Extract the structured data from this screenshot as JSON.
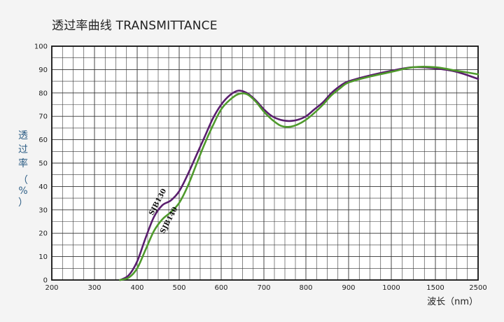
{
  "chart_data": {
    "type": "line",
    "title": "透过率曲线 TRANSMITTANCE",
    "xlabel": "波长（nm）",
    "ylabel_chars": [
      "透",
      "过",
      "率",
      "（",
      "%",
      "）"
    ],
    "x_ticks": [
      "200",
      "300",
      "400",
      "500",
      "600",
      "700",
      "800",
      "900",
      "1000",
      "1500",
      "2500"
    ],
    "y_ticks": [
      "0",
      "10",
      "20",
      "30",
      "40",
      "50",
      "60",
      "70",
      "80",
      "90",
      "100"
    ],
    "ylim": [
      0,
      100
    ],
    "grid": true,
    "series": [
      {
        "name": "SJB130",
        "color": "#5a1e6e",
        "x": [
          360,
          380,
          400,
          420,
          440,
          460,
          480,
          500,
          520,
          540,
          560,
          580,
          600,
          620,
          640,
          660,
          680,
          700,
          720,
          740,
          760,
          780,
          800,
          820,
          840,
          860,
          880,
          900,
          950,
          1000,
          1250,
          1500,
          2000,
          2500
        ],
        "y": [
          0,
          2,
          8,
          18,
          27,
          32,
          34,
          38,
          45,
          53,
          61,
          69,
          75,
          79,
          81,
          80,
          77,
          73,
          70,
          68.5,
          68,
          68.5,
          70,
          73,
          76,
          80,
          83,
          85,
          87.5,
          89.5,
          91,
          90.5,
          89,
          86
        ]
      },
      {
        "name": "SJB140",
        "color": "#4f9a2c",
        "x": [
          360,
          380,
          400,
          420,
          440,
          460,
          480,
          500,
          520,
          540,
          560,
          580,
          600,
          620,
          640,
          660,
          680,
          700,
          720,
          740,
          760,
          780,
          800,
          820,
          840,
          860,
          880,
          900,
          950,
          1000,
          1250,
          1500,
          2000,
          2500
        ],
        "y": [
          0,
          1,
          5,
          13,
          21,
          26,
          29,
          33,
          40,
          49,
          58,
          66,
          73,
          77,
          79.5,
          79.5,
          76.5,
          72,
          68.5,
          66,
          65.5,
          66.5,
          68.5,
          71.5,
          75,
          79,
          82,
          84.5,
          87,
          89,
          91,
          91,
          89.5,
          88
        ]
      }
    ]
  }
}
